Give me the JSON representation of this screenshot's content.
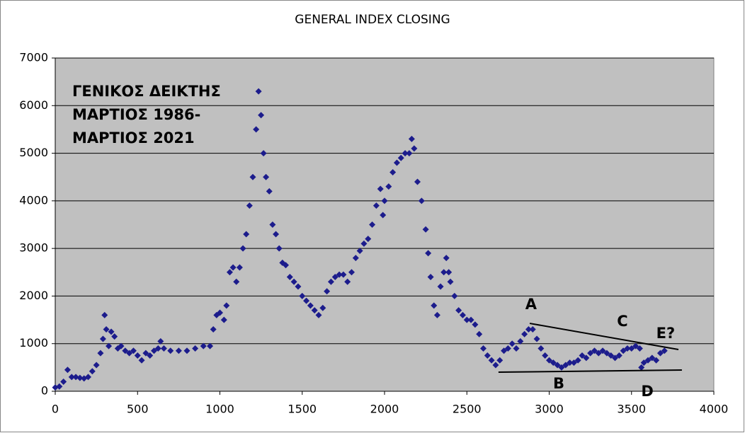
{
  "chart_data": {
    "type": "scatter",
    "title": "GENERAL INDEX CLOSING",
    "notes": [
      "ΓΕΝΙΚΟΣ ΔΕΙΚΤΗΣ",
      "ΜΑΡΤΙΟΣ 1986-",
      "ΜΑΡΤΙΟΣ 2021"
    ],
    "xlim": [
      0,
      4000
    ],
    "ylim": [
      0,
      7000
    ],
    "xticks": [
      0,
      500,
      1000,
      1500,
      2000,
      2500,
      3000,
      3500,
      4000
    ],
    "yticks": [
      0,
      1000,
      2000,
      3000,
      4000,
      5000,
      6000,
      7000
    ],
    "grid": true,
    "color": "#1c1c8c",
    "x": [
      0,
      25,
      50,
      75,
      100,
      125,
      150,
      175,
      200,
      225,
      250,
      275,
      290,
      300,
      310,
      325,
      340,
      360,
      380,
      400,
      425,
      450,
      475,
      500,
      525,
      550,
      575,
      600,
      625,
      640,
      660,
      700,
      750,
      800,
      850,
      900,
      940,
      960,
      980,
      1000,
      1025,
      1040,
      1060,
      1080,
      1100,
      1120,
      1140,
      1160,
      1180,
      1200,
      1220,
      1235,
      1250,
      1265,
      1280,
      1300,
      1320,
      1340,
      1360,
      1380,
      1400,
      1425,
      1450,
      1475,
      1500,
      1525,
      1550,
      1575,
      1600,
      1625,
      1650,
      1675,
      1700,
      1725,
      1750,
      1775,
      1800,
      1825,
      1850,
      1875,
      1900,
      1925,
      1950,
      1975,
      1990,
      2000,
      2025,
      2050,
      2075,
      2100,
      2125,
      2150,
      2165,
      2180,
      2200,
      2225,
      2250,
      2265,
      2280,
      2300,
      2320,
      2340,
      2360,
      2375,
      2390,
      2400,
      2425,
      2450,
      2475,
      2500,
      2525,
      2550,
      2575,
      2600,
      2625,
      2650,
      2675,
      2700,
      2725,
      2750,
      2775,
      2800,
      2825,
      2850,
      2875,
      2900,
      2925,
      2950,
      2975,
      3000,
      3025,
      3050,
      3075,
      3100,
      3125,
      3150,
      3175,
      3200,
      3225,
      3250,
      3275,
      3300,
      3325,
      3350,
      3375,
      3400,
      3425,
      3450,
      3475,
      3500,
      3525,
      3550,
      3560,
      3575,
      3600,
      3625,
      3650,
      3675,
      3700
    ],
    "y": [
      80,
      100,
      200,
      450,
      300,
      300,
      280,
      270,
      300,
      420,
      550,
      800,
      1100,
      1600,
      1300,
      950,
      1250,
      1150,
      900,
      950,
      850,
      800,
      850,
      750,
      650,
      800,
      750,
      850,
      900,
      1050,
      900,
      850,
      850,
      850,
      900,
      950,
      950,
      1300,
      1600,
      1650,
      1500,
      1800,
      2500,
      2600,
      2300,
      2600,
      3000,
      3300,
      3900,
      4500,
      5500,
      6300,
      5800,
      5000,
      4500,
      4200,
      3500,
      3300,
      3000,
      2700,
      2650,
      2400,
      2300,
      2200,
      2000,
      1900,
      1800,
      1700,
      1600,
      1750,
      2100,
      2300,
      2400,
      2450,
      2450,
      2300,
      2500,
      2800,
      2950,
      3100,
      3200,
      3500,
      3900,
      4250,
      3700,
      4000,
      4300,
      4600,
      4800,
      4900,
      5000,
      5000,
      5300,
      5100,
      4400,
      4000,
      3400,
      2900,
      2400,
      1800,
      1600,
      2200,
      2500,
      2800,
      2500,
      2300,
      2000,
      1700,
      1600,
      1500,
      1500,
      1400,
      1200,
      900,
      750,
      650,
      550,
      650,
      850,
      900,
      1000,
      900,
      1050,
      1200,
      1300,
      1300,
      1100,
      900,
      750,
      650,
      600,
      550,
      500,
      550,
      600,
      600,
      650,
      750,
      700,
      800,
      850,
      800,
      850,
      800,
      750,
      700,
      750,
      850,
      900,
      900,
      950,
      900,
      500,
      600,
      650,
      700,
      650,
      800,
      850
    ],
    "trendlines": [
      {
        "x": [
          2882,
          3785
        ],
        "y": [
          1426,
          877
        ]
      },
      {
        "x": [
          2692,
          3806
        ],
        "y": [
          401,
          446
        ]
      }
    ],
    "annotations": [
      {
        "text": "A",
        "x": 2890,
        "y": 1813
      },
      {
        "text": "B",
        "x": 3058,
        "y": 149
      },
      {
        "text": "C",
        "x": 3445,
        "y": 1456
      },
      {
        "text": "D",
        "x": 3596,
        "y": -15
      },
      {
        "text": "E?",
        "x": 3707,
        "y": 1204
      }
    ]
  }
}
